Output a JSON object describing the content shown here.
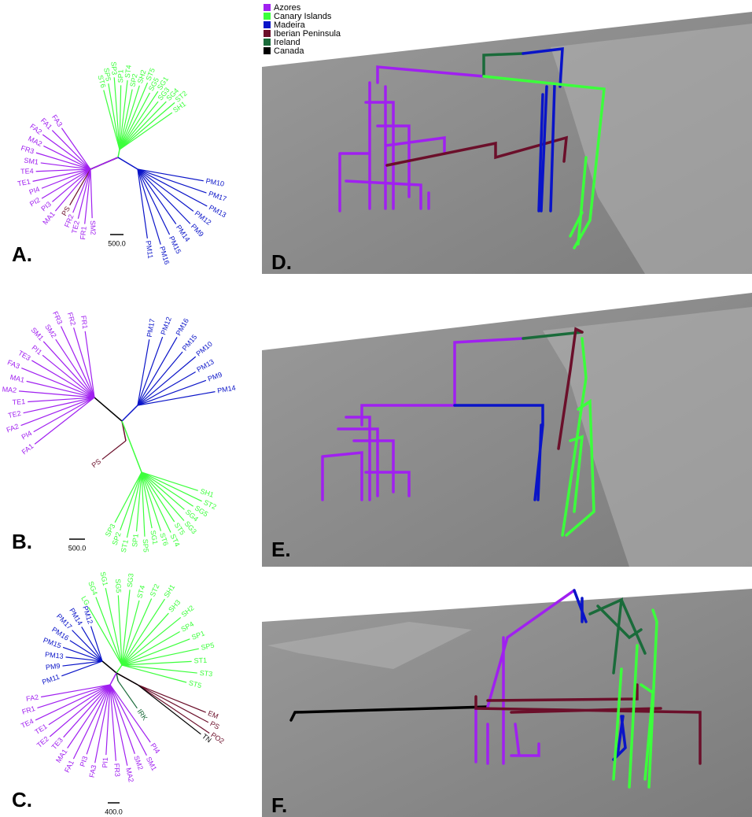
{
  "legend": [
    {
      "name": "Azores",
      "color": "#a020f0"
    },
    {
      "name": "Canary Islands",
      "color": "#3cff3c"
    },
    {
      "name": "Madeira",
      "color": "#0a14c8"
    },
    {
      "name": "Iberian Peninsula",
      "color": "#6b0f2a"
    },
    {
      "name": "Ireland",
      "color": "#1a6b3a"
    },
    {
      "name": "Canada",
      "color": "#000000"
    }
  ],
  "trees": [
    {
      "label": "A.",
      "scale_label": "500.0",
      "clades": [
        {
          "color": "#a020f0",
          "tips": [
            "FA3",
            "FA1",
            "FA2",
            "MA2",
            "FR3",
            "SM1",
            "TE4",
            "TE1",
            "PI4",
            "PI2",
            "PI3",
            "MA1"
          ]
        },
        {
          "color": "#6b0f2a",
          "tips": [
            "PS"
          ]
        },
        {
          "color": "#a020f0",
          "tips": [
            "FR2",
            "TE2",
            "FR1",
            "SM2"
          ]
        },
        {
          "color": "#3cff3c",
          "tips": [
            "ST6",
            "SP5",
            "SP3",
            "SP1",
            "ST4",
            "SP2",
            "SH2",
            "ST5",
            "SG5",
            "SG1",
            "SG3",
            "SG4",
            "ST2",
            "SH1"
          ]
        },
        {
          "color": "#0a14c8",
          "tips": [
            "PM10",
            "PM17",
            "PM13",
            "PM12",
            "PM9",
            "PM14",
            "PM15",
            "PM16",
            "PM11"
          ]
        }
      ]
    },
    {
      "label": "B.",
      "scale_label": "500.0",
      "clades": [
        {
          "color": "#a020f0",
          "tips": [
            "FR1",
            "FR2",
            "FR3",
            "SM2",
            "SM1",
            "PI1",
            "TE3",
            "FA3",
            "MA1",
            "MA2",
            "TE1",
            "TE2",
            "FA2",
            "PI4",
            "FA1"
          ]
        },
        {
          "color": "#0a14c8",
          "tips": [
            "PM17",
            "PM12",
            "PM16",
            "PM15",
            "PM10",
            "PM13",
            "PM9",
            "PM14"
          ]
        },
        {
          "color": "#6b0f2a",
          "tips": [
            "PS"
          ]
        },
        {
          "color": "#3cff3c",
          "tips": [
            "SP3",
            "SP2",
            "ST1",
            "SP1",
            "SP5",
            "SG1",
            "ST6",
            "ST4",
            "ST5",
            "SG3",
            "SG4",
            "SG5",
            "ST2",
            "SH1"
          ]
        }
      ]
    },
    {
      "label": "C.",
      "scale_label": "400.0",
      "clades": [
        {
          "color": "#0a14c8",
          "tips": [
            "PM12",
            "PM14",
            "PM17",
            "PM16",
            "PM15",
            "PM13",
            "PM9",
            "PM11"
          ]
        },
        {
          "color": "#3cff3c",
          "tips": [
            "LG",
            "SG4",
            "SG1",
            "SG5",
            "SG3",
            "ST4",
            "ST2",
            "SH1",
            "SH3",
            "SH2",
            "SP4",
            "SP1",
            "SP5",
            "ST1",
            "ST3",
            "ST5"
          ]
        },
        {
          "color": "#1a6b3a",
          "tips": [
            "IRK"
          ]
        },
        {
          "color": "#6b0f2a",
          "tips": [
            "EM",
            "PS",
            "PO2"
          ]
        },
        {
          "color": "#000000",
          "tips": [
            "TN"
          ]
        },
        {
          "color": "#a020f0",
          "tips": [
            "FA2",
            "FR1",
            "TE4",
            "TE1",
            "TE2",
            "TE3",
            "MA1",
            "FA1",
            "PI3",
            "FA3",
            "PI1",
            "FR3",
            "MA2",
            "SM2",
            "SM1",
            "PI4"
          ]
        }
      ]
    }
  ],
  "maps": [
    {
      "label": "D."
    },
    {
      "label": "E."
    },
    {
      "label": "F."
    }
  ]
}
